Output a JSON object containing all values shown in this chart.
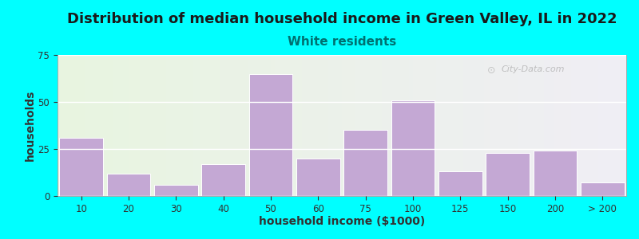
{
  "title": "Distribution of median household income in Green Valley, IL in 2022",
  "subtitle": "White residents",
  "xlabel": "household income ($1000)",
  "ylabel": "households",
  "background_outer": "#00FFFF",
  "bar_color": "#C4A8D4",
  "bar_edge_color": "#FFFFFF",
  "categories": [
    "10",
    "20",
    "30",
    "40",
    "50",
    "60",
    "75",
    "100",
    "125",
    "150",
    "200",
    "> 200"
  ],
  "values": [
    31,
    12,
    6,
    17,
    65,
    20,
    35,
    51,
    13,
    23,
    24,
    7
  ],
  "ylim": [
    0,
    75
  ],
  "yticks": [
    0,
    25,
    50,
    75
  ],
  "title_fontsize": 13,
  "subtitle_fontsize": 11,
  "subtitle_color": "#007070",
  "axis_label_fontsize": 10,
  "tick_fontsize": 8.5,
  "watermark_text": "City-Data.com",
  "plot_bg_color_left": "#E8F5E0",
  "plot_bg_color_right": "#F0EEF5"
}
